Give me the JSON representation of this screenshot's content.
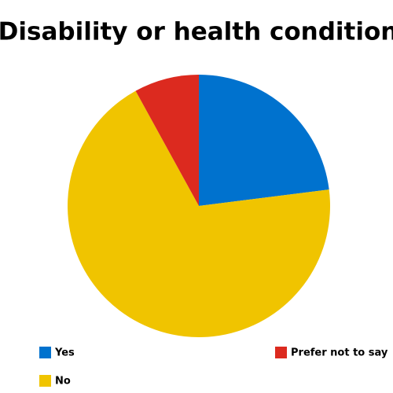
{
  "chart_data": {
    "type": "pie",
    "title": "Disability or health condition",
    "categories": [
      "Yes",
      "No",
      "Prefer not to say"
    ],
    "values": [
      23,
      69,
      8
    ],
    "colors": [
      "#0072ce",
      "#f0c400",
      "#dc2a1f"
    ]
  }
}
